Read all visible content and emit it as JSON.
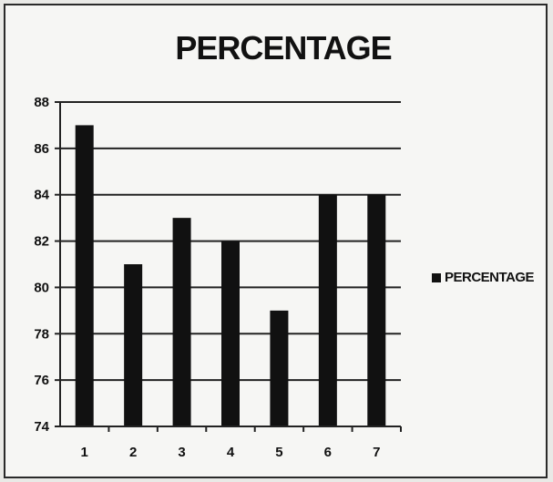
{
  "chart_data": {
    "type": "bar",
    "title": "PERCENTAGE",
    "categories": [
      "1",
      "2",
      "3",
      "4",
      "5",
      "6",
      "7"
    ],
    "series": [
      {
        "name": "PERCENTAGE",
        "values": [
          87,
          81,
          83,
          82,
          79,
          84,
          84
        ],
        "color": "#111111"
      }
    ],
    "ylim": [
      74,
      88
    ],
    "yticks": [
      74,
      76,
      78,
      80,
      82,
      84,
      86,
      88
    ],
    "grid": true,
    "legend_position": "right"
  }
}
